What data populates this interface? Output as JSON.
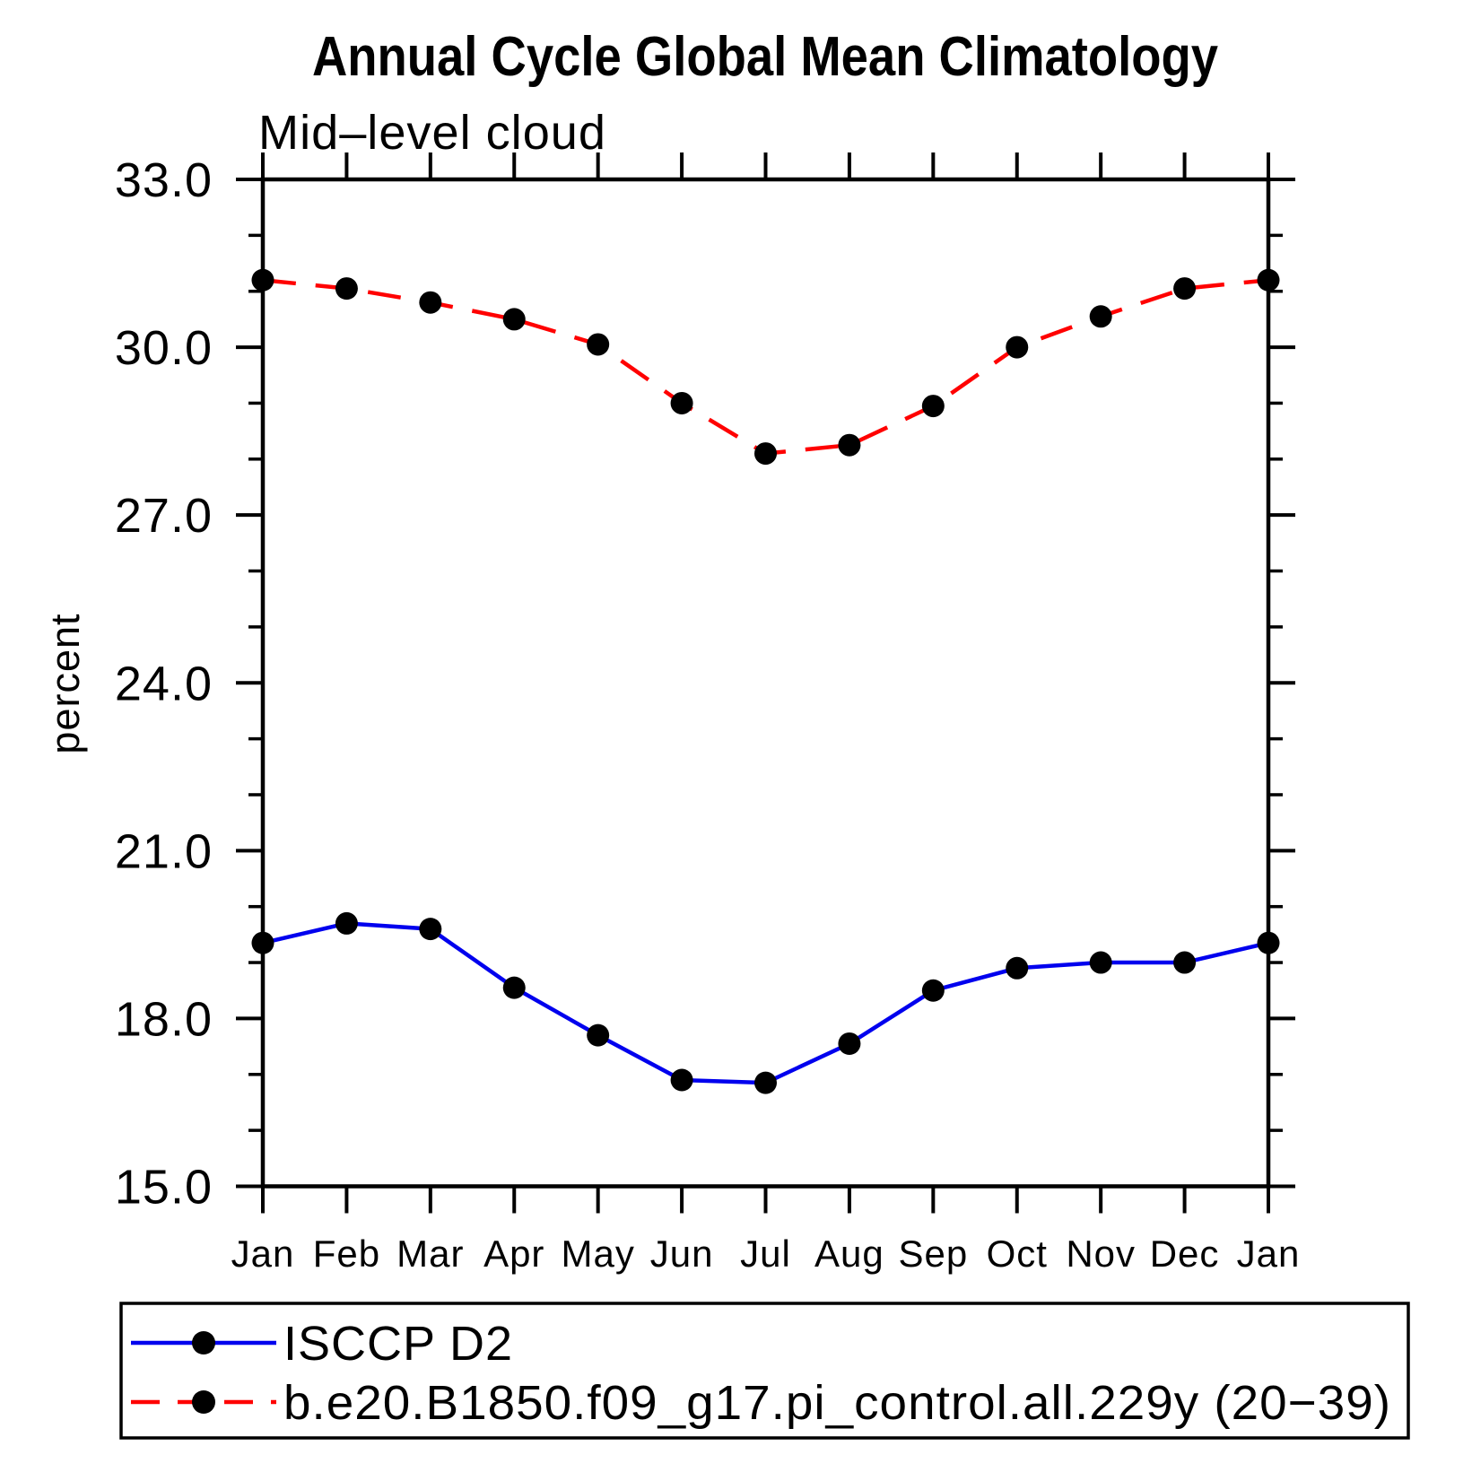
{
  "page": {
    "background": "#ffffff",
    "frame_color": "#000000"
  },
  "chart_data": {
    "type": "line",
    "title": "Annual Cycle Global Mean Climatology",
    "subtitle": "Mid–level cloud",
    "xlabel": "",
    "ylabel": "percent",
    "categories": [
      "Jan",
      "Feb",
      "Mar",
      "Apr",
      "May",
      "Jun",
      "Jul",
      "Aug",
      "Sep",
      "Oct",
      "Nov",
      "Dec",
      "Jan"
    ],
    "series": [
      {
        "name": "ISCCP D2",
        "line_color": "#0000ee",
        "line_style": "solid",
        "marker": "circle",
        "marker_color": "#000000",
        "values": [
          19.35,
          19.7,
          19.6,
          18.55,
          17.7,
          16.9,
          16.85,
          17.55,
          18.5,
          18.9,
          19.0,
          19.0,
          19.35
        ]
      },
      {
        "name": "b.e20.B1850.f09_g17.pi_control.all.229y (20−39)",
        "line_color": "#ff0000",
        "line_style": "dashed",
        "marker": "circle",
        "marker_color": "#000000",
        "values": [
          31.2,
          31.05,
          30.8,
          30.5,
          30.05,
          29.0,
          28.1,
          28.25,
          28.95,
          30.0,
          30.55,
          31.05,
          31.2
        ]
      }
    ],
    "ylim": [
      15.0,
      33.0
    ],
    "ytick_major_values": [
      15,
      18,
      21,
      24,
      27,
      30,
      33
    ],
    "ytick_major_labels": [
      "15.0",
      "18.0",
      "21.0",
      "24.0",
      "27.0",
      "30.0",
      "33.0"
    ],
    "ytick_minor_step": 1.0,
    "grid": false,
    "legend_position": "bottom-box"
  }
}
